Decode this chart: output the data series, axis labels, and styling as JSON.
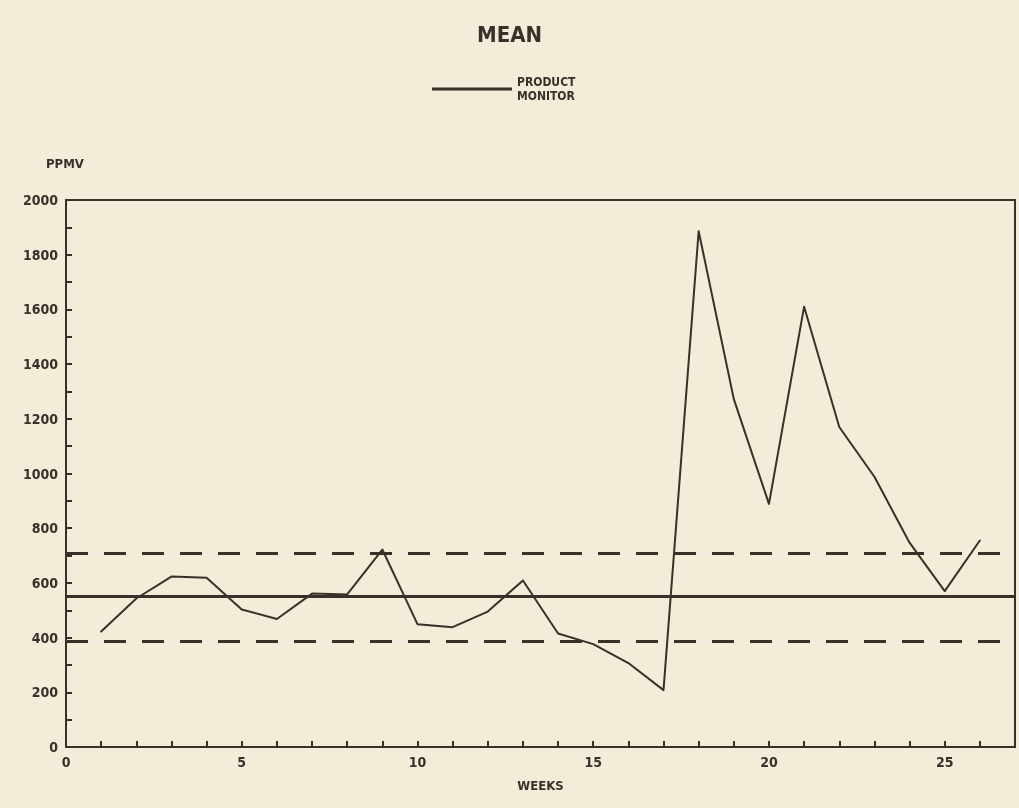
{
  "chart_data": {
    "type": "line",
    "title": "MEAN",
    "xlabel": "WEEKS",
    "ylabel": "PPMV",
    "x": [
      1,
      2,
      3,
      4,
      5,
      6,
      7,
      8,
      9,
      10,
      11,
      12,
      13,
      14,
      15,
      16,
      17,
      18,
      19,
      20,
      21,
      22,
      23,
      24,
      25,
      26
    ],
    "series": [
      {
        "name": "PRODUCT MONITOR",
        "color": "#3b2f2a",
        "values": [
          422,
          543,
          623,
          619,
          503,
          468,
          561,
          558,
          722,
          449,
          438,
          495,
          609,
          415,
          376,
          307,
          208,
          1886,
          1272,
          889,
          1610,
          1170,
          988,
          747,
          570,
          755
        ]
      }
    ],
    "xlim": [
      0,
      27
    ],
    "xticks": [
      0,
      {
        "value": 1,
        "label": null
      },
      {
        "value": 2,
        "label": null
      },
      {
        "value": 3,
        "label": null
      },
      {
        "value": 4,
        "label": null
      },
      5,
      {
        "value": 6,
        "label": null
      },
      {
        "value": 7,
        "label": null
      },
      {
        "value": 8,
        "label": null
      },
      {
        "value": 9,
        "label": null
      },
      10,
      {
        "value": 11,
        "label": null
      },
      {
        "value": 12,
        "label": null
      },
      {
        "value": 13,
        "label": null
      },
      {
        "value": 14,
        "label": null
      },
      15,
      {
        "value": 16,
        "label": null
      },
      {
        "value": 17,
        "label": null
      },
      {
        "value": 18,
        "label": null
      },
      {
        "value": 19,
        "label": null
      },
      20,
      {
        "value": 21,
        "label": null
      },
      {
        "value": 22,
        "label": null
      },
      {
        "value": 23,
        "label": null
      },
      {
        "value": 24,
        "label": null
      },
      25,
      {
        "value": 26,
        "label": null
      }
    ],
    "ylim": [
      0,
      2000
    ],
    "yticks": [
      0,
      {
        "value": 100,
        "label": null
      },
      200,
      {
        "value": 300,
        "label": null
      },
      400,
      {
        "value": 500,
        "label": null
      },
      600,
      {
        "value": 700,
        "label": null
      },
      800,
      {
        "value": 900,
        "label": null
      },
      1000,
      {
        "value": 1100,
        "label": null
      },
      1200,
      {
        "value": 1300,
        "label": null
      },
      1400,
      {
        "value": 1500,
        "label": null
      },
      1600,
      {
        "value": 1700,
        "label": null
      },
      1800,
      {
        "value": 1900,
        "label": null
      },
      2000
    ],
    "ref_lines": [
      {
        "axis": "y",
        "value": 551,
        "color": "#3b2f2a",
        "line_style": "solid"
      },
      {
        "axis": "y",
        "value": 708,
        "color": "#3b2f2a",
        "line_style": "dashed"
      },
      {
        "axis": "y",
        "value": 387,
        "color": "#3b2f2a",
        "line_style": "dashed"
      }
    ],
    "grid": false,
    "legend": "top",
    "marker": "none",
    "line_style": "solid"
  }
}
